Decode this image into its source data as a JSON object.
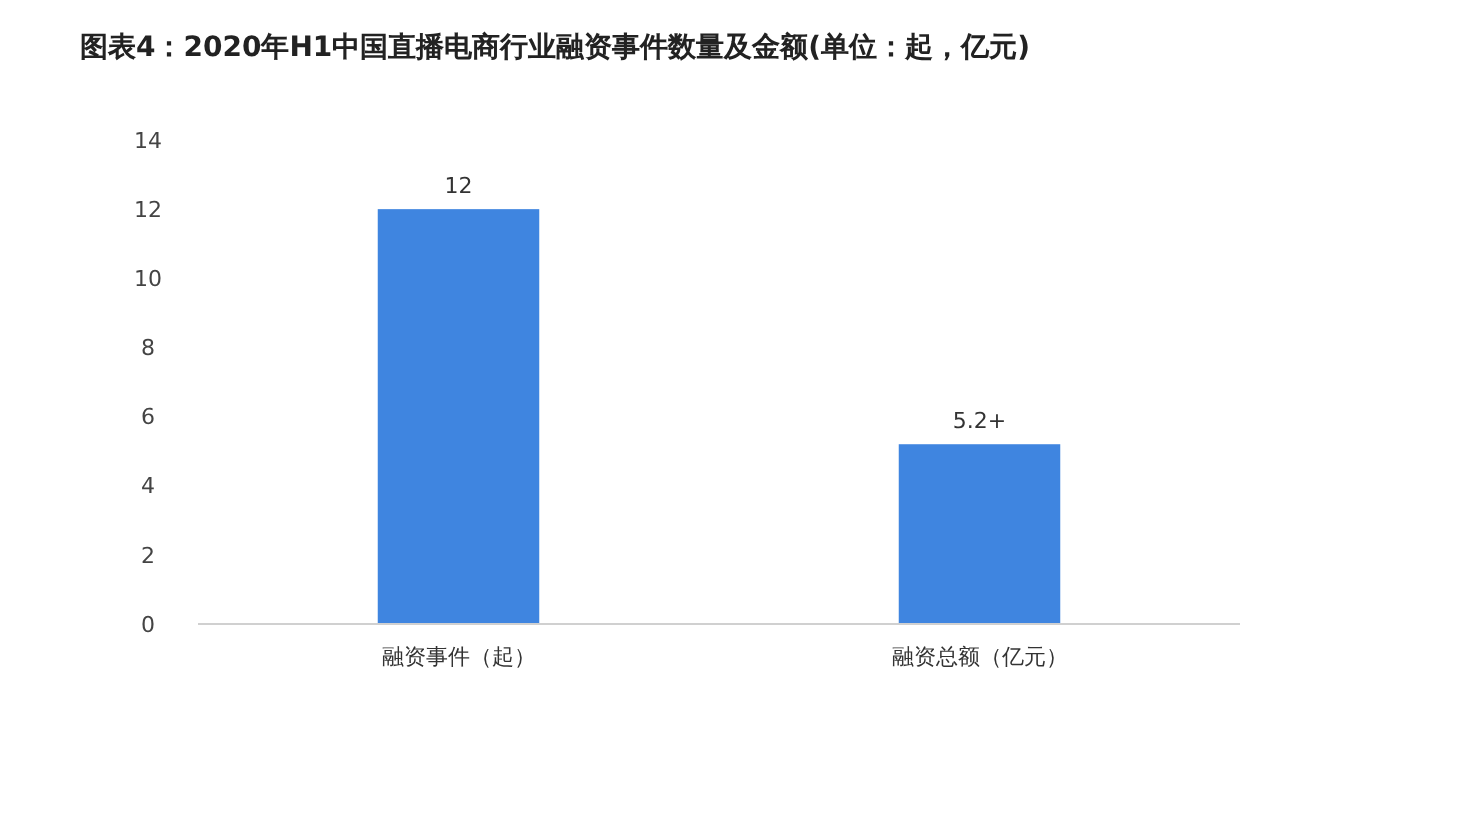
{
  "chart_data": {
    "type": "bar",
    "title": "图表4：2020年H1中国直播电商行业融资事件数量及金额(单位：起，亿元)",
    "categories": [
      "融资事件（起）",
      "融资总额（亿元）"
    ],
    "values": [
      12,
      5.2
    ],
    "value_labels": [
      "12",
      "5.2+"
    ],
    "color": "#3f85e0",
    "ylim": [
      0,
      14
    ],
    "yticks": [
      0,
      2,
      4,
      6,
      8,
      10,
      12,
      14
    ],
    "grid": false
  }
}
